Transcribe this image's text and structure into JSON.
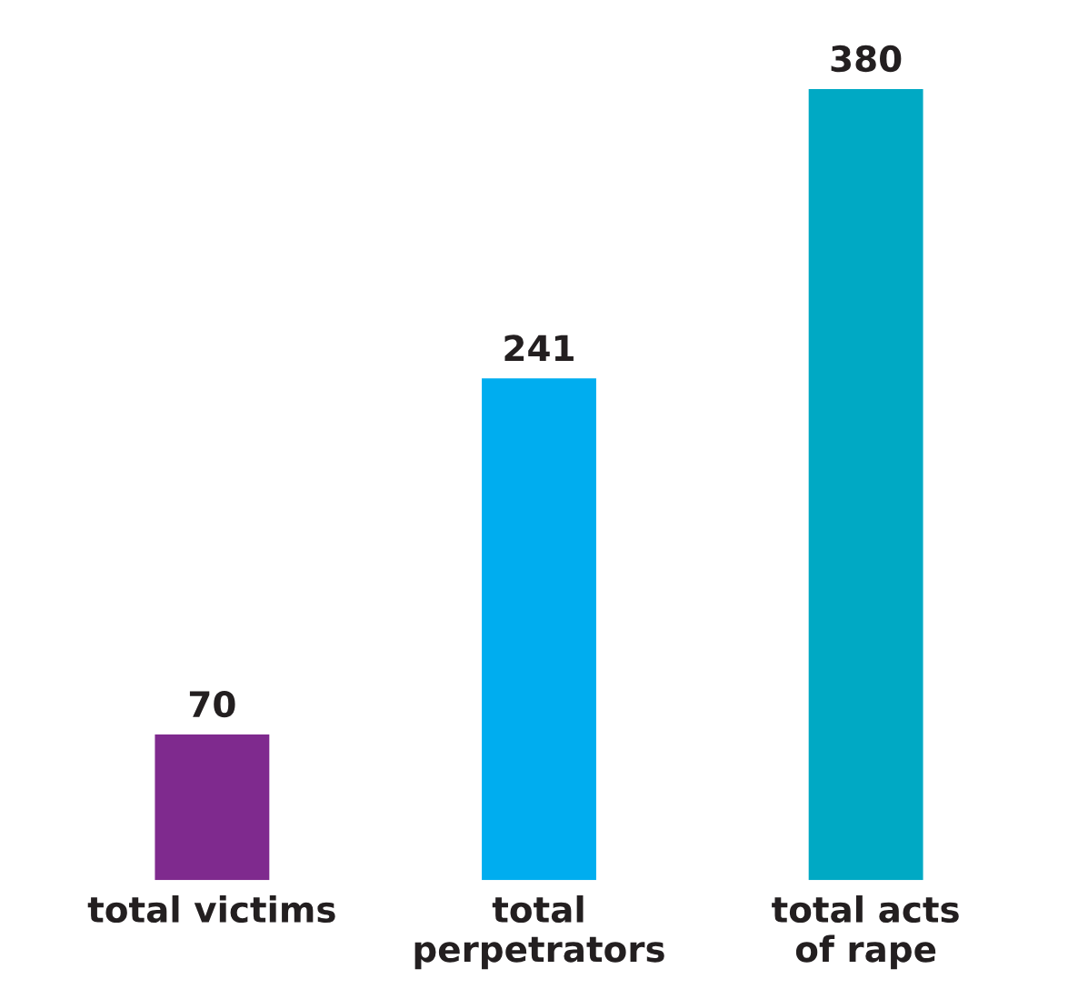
{
  "chart_data": {
    "type": "bar",
    "categories": [
      "total victims",
      "total\nperpetrators",
      "total acts\nof rape"
    ],
    "values": [
      70,
      241,
      380
    ],
    "colors": [
      "#7f2a8e",
      "#00adef",
      "#00a9c4"
    ],
    "data_labels": true,
    "grid": false,
    "legend": false
  }
}
